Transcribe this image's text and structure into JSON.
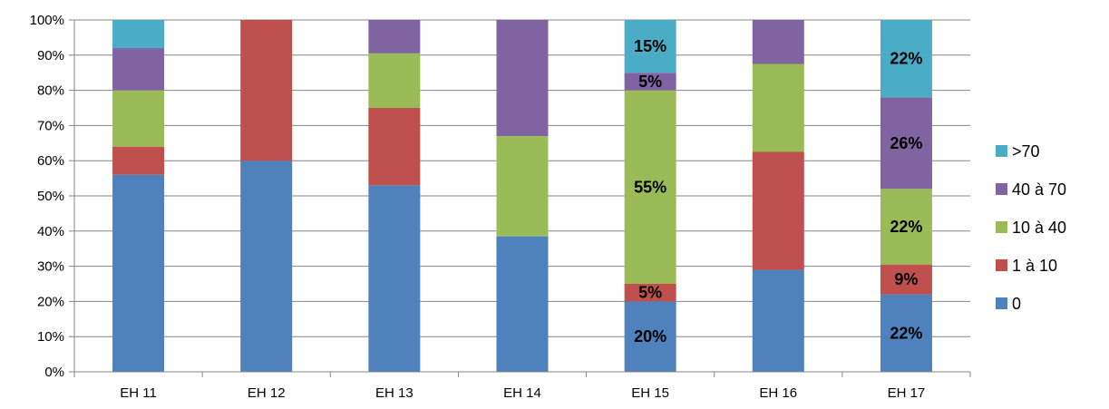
{
  "chart_data": {
    "type": "bar",
    "stacked": true,
    "percent_stacked": true,
    "title": "",
    "xlabel": "",
    "ylabel": "",
    "ylim": [
      0,
      100
    ],
    "y_ticks": [
      "0%",
      "10%",
      "20%",
      "30%",
      "40%",
      "50%",
      "60%",
      "70%",
      "80%",
      "90%",
      "100%"
    ],
    "grid": true,
    "legend_position": "right",
    "categories": [
      "EH 11",
      "EH 12",
      "EH 13",
      "EH 14",
      "EH 15",
      "EH 16",
      "EH 17"
    ],
    "series": [
      {
        "name": "0",
        "color": "#4F81BD",
        "values": [
          56,
          60,
          53,
          38.5,
          20,
          29,
          22
        ]
      },
      {
        "name": "1 à 10",
        "color": "#C0504D",
        "values": [
          8,
          40,
          22,
          0,
          5,
          33.5,
          8.5
        ]
      },
      {
        "name": "10 à 40",
        "color": "#9BBB59",
        "values": [
          16,
          0,
          15.5,
          28.5,
          55,
          25,
          21.5
        ]
      },
      {
        "name": "40 à 70",
        "color": "#8064A2",
        "values": [
          12,
          0,
          9.5,
          33,
          5,
          12.5,
          26
        ]
      },
      {
        "name": ">70",
        "color": "#4BACC6",
        "values": [
          8,
          0,
          0,
          0,
          15,
          0,
          22
        ]
      }
    ],
    "data_labels": [
      {
        "category": "EH 15",
        "series": "0",
        "text": "20%"
      },
      {
        "category": "EH 15",
        "series": "1 à 10",
        "text": "5%"
      },
      {
        "category": "EH 15",
        "series": "10 à 40",
        "text": "55%"
      },
      {
        "category": "EH 15",
        "series": "40 à 70",
        "text": "5%"
      },
      {
        "category": "EH 15",
        "series": ">70",
        "text": "15%"
      },
      {
        "category": "EH 17",
        "series": "0",
        "text": "22%"
      },
      {
        "category": "EH 17",
        "series": "1 à 10",
        "text": "9%"
      },
      {
        "category": "EH 17",
        "series": "10 à 40",
        "text": "22%"
      },
      {
        "category": "EH 17",
        "series": "40 à 70",
        "text": "26%"
      },
      {
        "category": "EH 17",
        "series": ">70",
        "text": "22%"
      }
    ],
    "legend_order": [
      ">70",
      "40 à 70",
      "10 à 40",
      "1 à 10",
      "0"
    ]
  }
}
